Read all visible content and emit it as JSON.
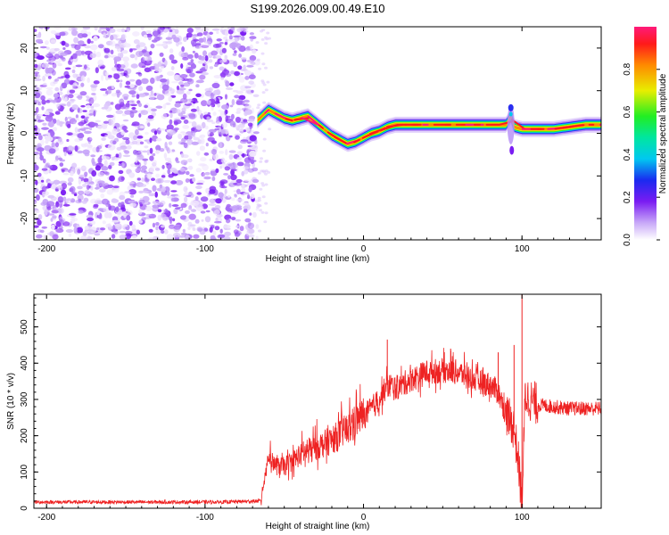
{
  "title": "S199.2026.009.00.49.E10",
  "chart_data": [
    {
      "type": "heatmap",
      "xlabel": "Height of straight line (km)",
      "ylabel": "Frequency (Hz)",
      "xlim": [
        -208,
        150
      ],
      "ylim": [
        -25,
        25
      ],
      "xticks": [
        -200,
        -100,
        0,
        100
      ],
      "yticks": [
        20,
        10,
        0,
        -10,
        -20
      ],
      "noise_region_x": [
        -208,
        -67
      ],
      "ridge": {
        "x": [
          -67,
          -60,
          -55,
          -50,
          -45,
          -40,
          -35,
          -30,
          -25,
          -20,
          -15,
          -10,
          -5,
          0,
          5,
          10,
          15,
          20,
          30,
          40,
          50,
          60,
          70,
          80,
          90,
          93,
          95,
          100,
          110,
          120,
          130,
          140,
          150
        ],
        "freq": [
          3.0,
          5.5,
          4.5,
          3.5,
          3.0,
          3.5,
          4.0,
          2.5,
          1.0,
          -0.5,
          -1.5,
          -2.5,
          -2.0,
          -1.0,
          0.0,
          0.5,
          1.5,
          2.0,
          2.0,
          2.0,
          2.0,
          2.0,
          2.0,
          2.0,
          2.0,
          4.0,
          1.5,
          1.0,
          1.0,
          1.0,
          1.5,
          2.0,
          2.0
        ]
      },
      "colorbar": {
        "label": "Normalized spectral amplitude",
        "ticks": [
          "0.0",
          "0.2",
          "0.4",
          "0.6",
          "0.8"
        ],
        "range": [
          0,
          1
        ]
      }
    },
    {
      "type": "line",
      "xlabel": "Height of straight line (km)",
      "ylabel": "SNR (10 * v/v)",
      "xlim": [
        -208,
        150
      ],
      "ylim": [
        0,
        590
      ],
      "xticks": [
        -200,
        -100,
        0,
        100
      ],
      "yticks": [
        500,
        400,
        300,
        200,
        100,
        0
      ],
      "line_color": "#ee2222",
      "envelope": {
        "x": [
          -208,
          -180,
          -150,
          -120,
          -90,
          -65,
          -60,
          -55,
          -50,
          -40,
          -30,
          -20,
          -10,
          0,
          10,
          15,
          20,
          30,
          40,
          50,
          60,
          70,
          80,
          85,
          90,
          95,
          98,
          100,
          102,
          105,
          110,
          120,
          130,
          140,
          150
        ],
        "y": [
          15,
          15,
          15,
          15,
          15,
          18,
          140,
          110,
          110,
          140,
          160,
          180,
          210,
          250,
          300,
          340,
          330,
          355,
          375,
          380,
          375,
          355,
          340,
          320,
          260,
          220,
          120,
          10,
          310,
          300,
          285,
          280,
          275,
          275,
          275
        ]
      },
      "spikes": [
        {
          "x": 15,
          "y": 465
        },
        {
          "x": 55,
          "y": 440
        },
        {
          "x": 85,
          "y": 430
        },
        {
          "x": 95,
          "y": 450
        },
        {
          "x": 100,
          "y": 590
        },
        {
          "x": 100,
          "y": 5
        }
      ]
    }
  ]
}
